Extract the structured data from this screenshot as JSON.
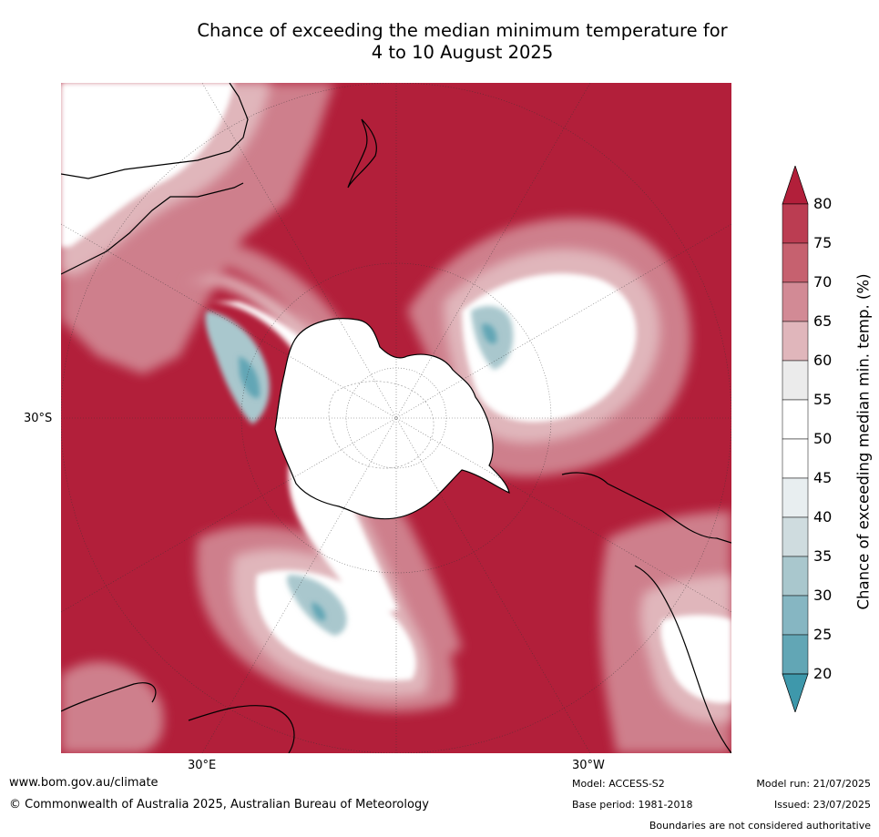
{
  "title": {
    "line1": "Chance of exceeding the median minimum temperature for",
    "line2": "4 to 10 August 2025"
  },
  "axes": {
    "lat_label": "30°S",
    "lon_east_label": "30°E",
    "lon_west_label": "30°W"
  },
  "colorbar": {
    "label": "Chance of exceeding median min. temp. (%)",
    "ticks": [
      "80",
      "75",
      "70",
      "65",
      "60",
      "55",
      "50",
      "45",
      "40",
      "35",
      "30",
      "25",
      "20"
    ],
    "colors": [
      "#b21f3a",
      "#bb3d52",
      "#c6616f",
      "#d28a95",
      "#e0b6bb",
      "#ebebeb",
      "#ffffff",
      "#ffffff",
      "#e8eef0",
      "#cfdcdf",
      "#a9c7cd",
      "#86b6c2",
      "#62a6b5",
      "#3e98ab"
    ],
    "max_color": "#b21f3a",
    "min_color": "#3e98ab"
  },
  "footer": {
    "website": "www.bom.gov.au/climate",
    "copyright": "© Commonwealth of Australia 2025, Australian Bureau of Meteorology",
    "model": "Model: ACCESS-S2",
    "base_period": "Base period: 1981-2018",
    "model_run": "Model run: 21/07/2025",
    "issued": "Issued: 23/07/2025",
    "disclaimer": "Boundaries are not considered authoritative"
  }
}
